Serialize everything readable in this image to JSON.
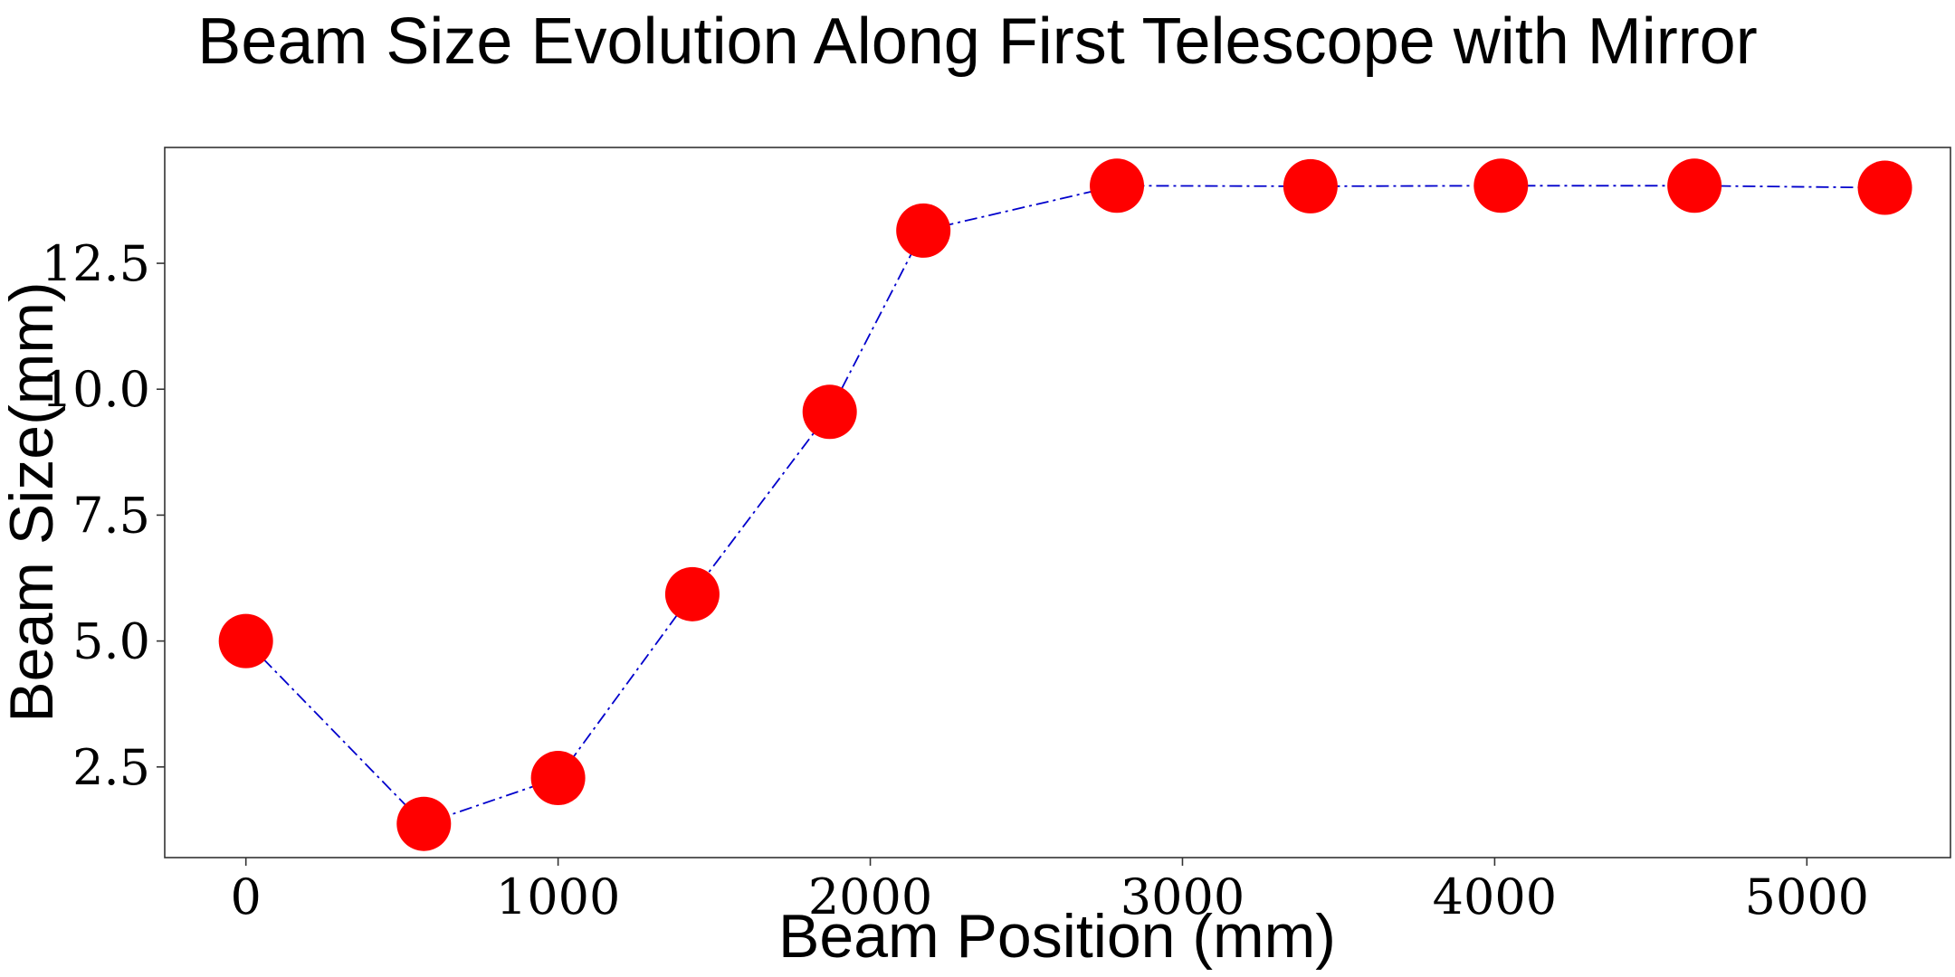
{
  "chart_data": {
    "type": "line",
    "title": "Beam Size Evolution Along First Telescope with Mirror",
    "xlabel": "Beam Position (mm)",
    "ylabel": "Beam Size(mm)",
    "xlim": [
      -260,
      5460
    ],
    "ylim": [
      0.7,
      14.8
    ],
    "xticks": [
      0,
      1000,
      2000,
      3000,
      4000,
      5000
    ],
    "xtick_labels": [
      "0",
      "1000",
      "2000",
      "3000",
      "4000",
      "5000"
    ],
    "yticks": [
      2.5,
      5.0,
      7.5,
      10.0,
      12.5
    ],
    "ytick_labels": [
      "2.5",
      "5.0",
      "7.5",
      "10.0",
      "12.5"
    ],
    "grid": false,
    "legend": "none",
    "series": [
      {
        "x": [
          0,
          570,
          1000,
          1430,
          1870,
          2170,
          2790,
          3410,
          4020,
          4640,
          5250
        ],
        "y": [
          5.0,
          1.37,
          2.28,
          5.93,
          9.55,
          13.15,
          14.04,
          14.03,
          14.04,
          14.04,
          14.0
        ],
        "line_color": "#0000cc",
        "line_style": "dashdot",
        "marker_color": "#ff0000",
        "marker": "circle"
      }
    ]
  }
}
